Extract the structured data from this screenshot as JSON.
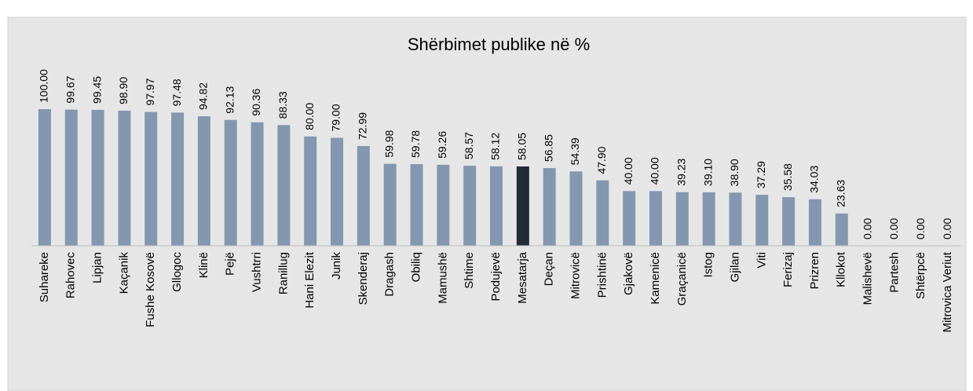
{
  "chart_data": {
    "type": "bar",
    "title": "Shërbimet publike në %",
    "categories": [
      "Suhareke",
      "Rahovec",
      "Lipjan",
      "Kaçanik",
      "Fushe Kosovë",
      "Gllogoc",
      "Klinë",
      "Pejë",
      "Vushtrri",
      "Ranillug",
      "Hani Elezit",
      "Junik",
      "Skenderaj",
      "Dragash",
      "Obiliq",
      "Mamushë",
      "Shtime",
      "Podujevë",
      "Mesatarja",
      "Deçan",
      "Mitrovicë",
      "Prishtinë",
      "Gjakovë",
      "Kamenicë",
      "Graçanicë",
      "Istog",
      "Gjilan",
      "Viti",
      "Ferizaj",
      "Prizren",
      "Kllokot",
      "Malishevë",
      "Partesh",
      "Shtërpcë",
      "Mitrovica Veriut"
    ],
    "values": [
      100,
      99.67,
      99.45,
      98.9,
      97.97,
      97.48,
      94.82,
      92.13,
      90.36,
      88.33,
      80,
      79,
      72.99,
      59.98,
      59.78,
      59.26,
      58.57,
      58.12,
      58.05,
      56.85,
      54.39,
      47.9,
      40,
      40,
      39.23,
      39.1,
      38.9,
      37.29,
      35.58,
      34.03,
      23.63,
      0,
      0,
      0,
      0
    ],
    "value_labels": [
      "100.00",
      "99.67",
      "99.45",
      "98.90",
      "97.97",
      "97.48",
      "94.82",
      "92.13",
      "90.36",
      "88.33",
      "80.00",
      "79.00",
      "72.99",
      "59.98",
      "59.78",
      "59.26",
      "58.57",
      "58.12",
      "58.05",
      "56.85",
      "54.39",
      "47.90",
      "40.00",
      "40.00",
      "39.23",
      "39.10",
      "38.90",
      "37.29",
      "35.58",
      "34.03",
      "23.63",
      "0.00",
      "0.00",
      "0.00",
      "0.00"
    ],
    "colors": [
      "#8497b0",
      "#8497b0",
      "#8497b0",
      "#8497b0",
      "#8497b0",
      "#8497b0",
      "#8497b0",
      "#8497b0",
      "#8497b0",
      "#8497b0",
      "#8497b0",
      "#8497b0",
      "#8497b0",
      "#8497b0",
      "#8497b0",
      "#8497b0",
      "#8497b0",
      "#8497b0",
      "#222a35",
      "#8497b0",
      "#8497b0",
      "#8497b0",
      "#8497b0",
      "#8497b0",
      "#8497b0",
      "#8497b0",
      "#8497b0",
      "#8497b0",
      "#8497b0",
      "#8497b0",
      "#8497b0",
      "#8497b0",
      "#8497b0",
      "#8497b0",
      "#8497b0"
    ],
    "ylim": [
      0,
      100
    ]
  }
}
